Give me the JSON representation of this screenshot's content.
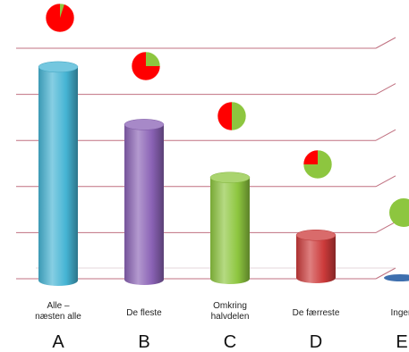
{
  "chart_data": {
    "type": "bar",
    "style": "3d-cylinder",
    "grid": true,
    "categories": [
      {
        "label_lines": [
          "Alle –",
          "næsten alle"
        ],
        "letter": "A",
        "color": "#45B4D4"
      },
      {
        "label_lines": [
          "De fleste"
        ],
        "letter": "B",
        "color": "#8A62B5"
      },
      {
        "label_lines": [
          "Omkring",
          "halvdelen"
        ],
        "letter": "C",
        "color": "#8DC63F"
      },
      {
        "label_lines": [
          "De færreste"
        ],
        "letter": "D",
        "color": "#CC3A3A"
      },
      {
        "label_lines": [
          "Ingen"
        ],
        "letter": "E",
        "color": "#3E6FAE"
      }
    ],
    "values": [
      95,
      70,
      47,
      22,
      0
    ],
    "ylim": [
      0,
      100
    ],
    "pie_fractions": [
      0.95,
      0.75,
      0.5,
      0.25,
      0
    ],
    "pie_colors": {
      "part": "#FF0000",
      "rest": "#8DC63F"
    },
    "grid_color": "#C07080"
  }
}
